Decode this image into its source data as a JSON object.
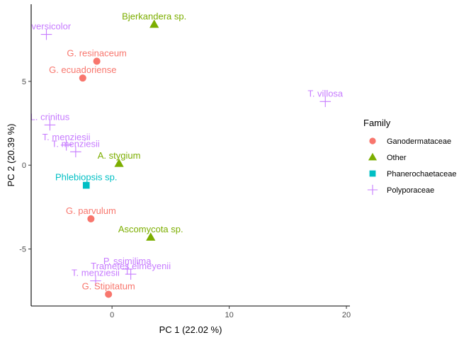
{
  "chart_data": {
    "type": "scatter",
    "xlabel": "PC 1 (22.02 %)",
    "ylabel": "PC 2 (20.39 %)",
    "xlim": [
      -6.9,
      20.3
    ],
    "ylim": [
      -8.4,
      9.6
    ],
    "x_ticks": [
      {
        "value": 0,
        "label": "0"
      },
      {
        "value": 10,
        "label": "10"
      },
      {
        "value": 20,
        "label": "20"
      }
    ],
    "y_ticks": [
      {
        "value": -5,
        "label": "-5"
      },
      {
        "value": 0,
        "label": "0"
      },
      {
        "value": 5,
        "label": "5"
      }
    ],
    "grid": false,
    "legend": {
      "title": "Family",
      "placement": "right",
      "entries": [
        {
          "name": "Ganodermataceae",
          "shape": "circle",
          "color": "#F8766D"
        },
        {
          "name": "Other",
          "shape": "triangle",
          "color": "#7CAE00"
        },
        {
          "name": "Phanerochaetaceae",
          "shape": "square",
          "color": "#00BFC4"
        },
        {
          "name": "Polyporaceae",
          "shape": "plus",
          "color": "#C77CFF"
        }
      ]
    },
    "points": [
      {
        "label": "T. versicolor",
        "family": "Polyporaceae",
        "x": -5.6,
        "y": 7.8
      },
      {
        "label": "Bjerkandera sp.",
        "family": "Other",
        "x": 3.6,
        "y": 8.4
      },
      {
        "label": "G. resinaceum",
        "family": "Ganodermataceae",
        "x": -1.3,
        "y": 6.2
      },
      {
        "label": "G. ecuadoriense",
        "family": "Ganodermataceae",
        "x": -2.5,
        "y": 5.2
      },
      {
        "label": "T. villosa",
        "family": "Polyporaceae",
        "x": 18.2,
        "y": 3.8
      },
      {
        "label": "L. crinitus",
        "family": "Polyporaceae",
        "x": -5.3,
        "y": 2.4
      },
      {
        "label": "T. menziesii",
        "family": "Polyporaceae",
        "x": -3.9,
        "y": 1.2
      },
      {
        "label": "T. menziesii",
        "family": "Polyporaceae",
        "x": -3.1,
        "y": 0.8
      },
      {
        "label": "A. stygium",
        "family": "Other",
        "x": 0.6,
        "y": 0.1
      },
      {
        "label": "Phlebiopsis sp.",
        "family": "Phanerochaetaceae",
        "x": -2.2,
        "y": -1.2
      },
      {
        "label": "G. parvulum",
        "family": "Ganodermataceae",
        "x": -1.8,
        "y": -3.2
      },
      {
        "label": "Ascomycota sp.",
        "family": "Other",
        "x": 3.3,
        "y": -4.3
      },
      {
        "label": "P. ssimilima",
        "family": "Polyporaceae",
        "x": 1.3,
        "y": -6.2
      },
      {
        "label": "Trametes elmeyenii",
        "family": "Polyporaceae",
        "x": 1.6,
        "y": -6.5
      },
      {
        "label": "T. menziesii",
        "family": "Polyporaceae",
        "x": -1.4,
        "y": -6.9
      },
      {
        "label": "G. Stipitatum",
        "family": "Ganodermataceae",
        "x": -0.3,
        "y": -7.7
      }
    ]
  }
}
